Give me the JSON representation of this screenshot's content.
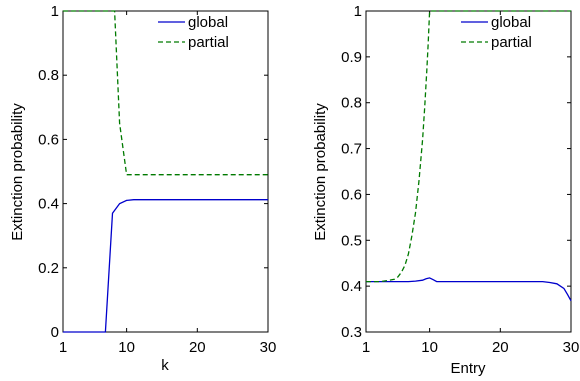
{
  "chart_data": [
    {
      "type": "line",
      "xlabel": "k",
      "ylabel": "Extinction probability",
      "xlim": [
        1,
        30
      ],
      "ylim": [
        0,
        1
      ],
      "xticks": [
        "1",
        "10",
        "20",
        "30"
      ],
      "yticks": [
        "0",
        "0.2",
        "0.4",
        "0.6",
        "0.8",
        "1"
      ],
      "legend_position": "top-right",
      "series": [
        {
          "name": "global",
          "color": "#0000cc",
          "style": "solid",
          "x": [
            1,
            6.9,
            7,
            8,
            9,
            10,
            11,
            12,
            14,
            16,
            18,
            20,
            22,
            24,
            26,
            28,
            30
          ],
          "y": [
            0,
            0,
            0,
            0.37,
            0.4,
            0.41,
            0.412,
            0.412,
            0.412,
            0.412,
            0.412,
            0.412,
            0.412,
            0.412,
            0.412,
            0.412,
            0.412
          ]
        },
        {
          "name": "partial",
          "color": "#007a00",
          "style": "dashed",
          "x": [
            1,
            8,
            8.3,
            9,
            10,
            11,
            12,
            14,
            16,
            18,
            20,
            22,
            24,
            26,
            28,
            30
          ],
          "y": [
            1,
            1,
            1,
            0.65,
            0.49,
            0.49,
            0.49,
            0.49,
            0.49,
            0.49,
            0.49,
            0.49,
            0.49,
            0.49,
            0.49,
            0.49
          ]
        }
      ]
    },
    {
      "type": "line",
      "xlabel": "Entry",
      "ylabel": "Extinction probability",
      "xlim": [
        1,
        30
      ],
      "ylim": [
        0.3,
        1
      ],
      "xticks": [
        "1",
        "10",
        "20",
        "30"
      ],
      "yticks": [
        "0.3",
        "0.4",
        "0.5",
        "0.6",
        "0.7",
        "0.8",
        "0.9",
        "1"
      ],
      "legend_position": "top-right",
      "series": [
        {
          "name": "global",
          "color": "#0000cc",
          "style": "solid",
          "x": [
            1,
            3,
            5,
            7,
            8,
            9,
            9.5,
            10,
            10.5,
            11,
            12,
            14,
            16,
            18,
            20,
            22,
            24,
            26,
            27,
            28,
            29,
            29.5,
            30
          ],
          "y": [
            0.41,
            0.41,
            0.41,
            0.41,
            0.411,
            0.413,
            0.416,
            0.418,
            0.414,
            0.41,
            0.41,
            0.41,
            0.41,
            0.41,
            0.41,
            0.41,
            0.41,
            0.41,
            0.408,
            0.405,
            0.395,
            0.382,
            0.368
          ]
        },
        {
          "name": "partial",
          "color": "#007a00",
          "style": "dashed",
          "x": [
            1,
            3,
            4,
            5,
            5.5,
            6,
            6.5,
            7,
            7.5,
            8,
            8.5,
            9,
            9.3,
            9.6,
            9.8,
            10,
            10.5,
            12,
            15,
            20,
            25,
            30
          ],
          "y": [
            0.41,
            0.41,
            0.412,
            0.415,
            0.42,
            0.43,
            0.445,
            0.47,
            0.51,
            0.56,
            0.63,
            0.72,
            0.79,
            0.87,
            0.93,
            1.0,
            1.0,
            1.0,
            1.0,
            1.0,
            1.0,
            1.0
          ]
        }
      ]
    }
  ]
}
